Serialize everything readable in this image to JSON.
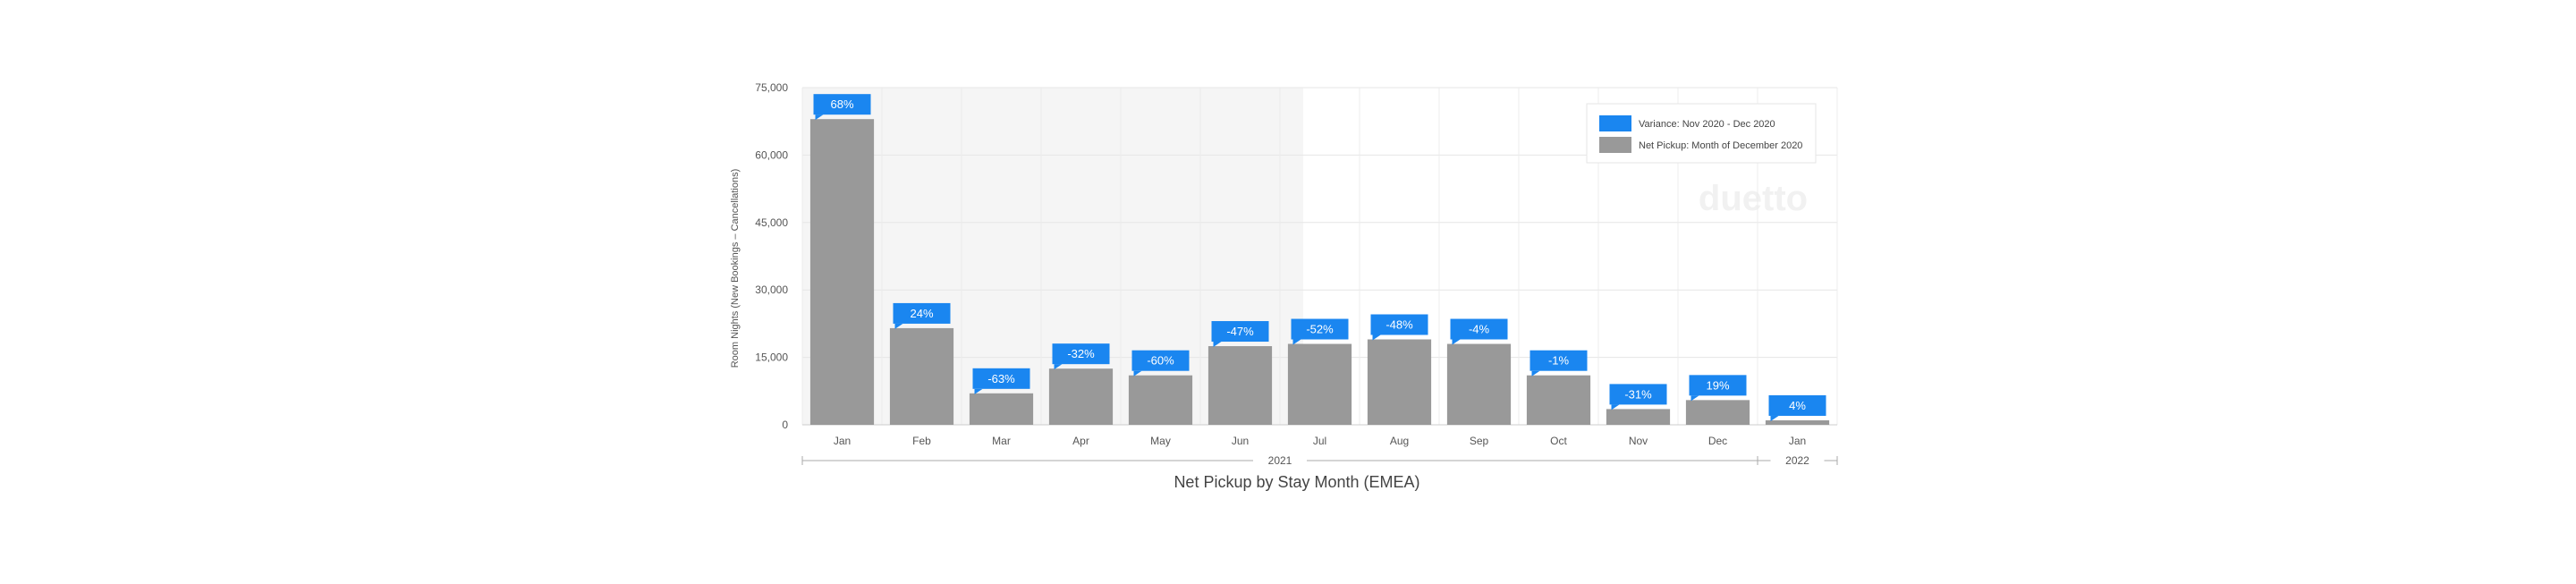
{
  "chart_data": {
    "type": "bar",
    "categories": [
      "Jan",
      "Feb",
      "Mar",
      "Apr",
      "May",
      "Jun",
      "Jul",
      "Aug",
      "Sep",
      "Oct",
      "Nov",
      "Dec",
      "Jan"
    ],
    "category_groups": [
      {
        "label": "2021",
        "count": 12
      },
      {
        "label": "2022",
        "count": 1
      }
    ],
    "series": [
      {
        "name": "Net Pickup: Month of December 2020",
        "color": "#999999",
        "values": [
          68000,
          21500,
          7000,
          12500,
          11000,
          17500,
          18000,
          19000,
          18000,
          11000,
          3500,
          5500,
          1000
        ]
      }
    ],
    "variance": {
      "name": "Variance: Nov 2020 - Dec 2020",
      "color": "#1a86f0",
      "labels": [
        "68%",
        "24%",
        "-63%",
        "-32%",
        "-60%",
        "-47%",
        "-52%",
        "-48%",
        "-4%",
        "-1%",
        "-31%",
        "19%",
        "4%"
      ]
    },
    "yticks": [
      "0",
      "15,000",
      "30,000",
      "45,000",
      "60,000",
      "75,000"
    ],
    "ylim": [
      0,
      75000
    ],
    "ylabel": "Room Nights (New Bookings – Cancellations)",
    "xlabel": "Net Pickup by Stay Month (EMEA)",
    "title": "",
    "grid": true,
    "legend_position": "top-right",
    "watermark": "duetto"
  }
}
